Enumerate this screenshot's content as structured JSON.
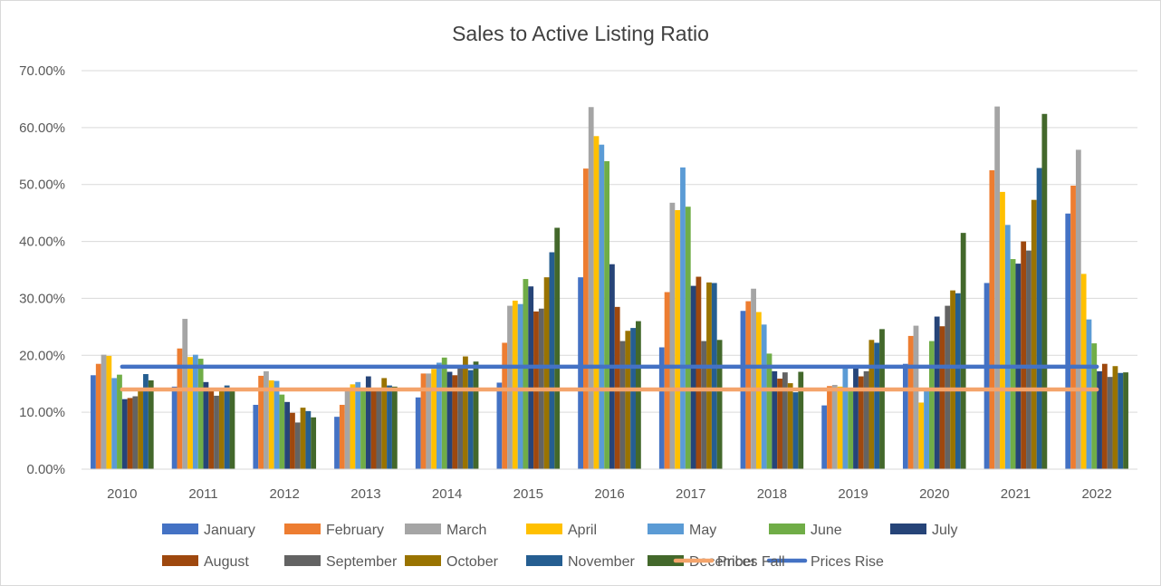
{
  "chart_data": {
    "type": "bar",
    "title": "Sales to Active Listing Ratio",
    "xlabel": "",
    "ylabel": "",
    "ylim": [
      0,
      0.7
    ],
    "y_ticks": [
      "0.00%",
      "10.00%",
      "20.00%",
      "30.00%",
      "40.00%",
      "50.00%",
      "60.00%",
      "70.00%"
    ],
    "grid": true,
    "legend_position": "bottom",
    "categories": [
      "2010",
      "2011",
      "2012",
      "2013",
      "2014",
      "2015",
      "2016",
      "2017",
      "2018",
      "2019",
      "2020",
      "2021",
      "2022"
    ],
    "series": [
      {
        "name": "January",
        "color": "#4472C4",
        "values": [
          0.165,
          0.145,
          0.113,
          0.092,
          0.126,
          0.152,
          0.337,
          0.214,
          0.278,
          0.112,
          0.185,
          0.327,
          0.449
        ]
      },
      {
        "name": "February",
        "color": "#ED7D31",
        "values": [
          0.185,
          0.212,
          0.164,
          0.113,
          0.168,
          0.222,
          0.528,
          0.311,
          0.295,
          0.146,
          0.234,
          0.525,
          0.498
        ]
      },
      {
        "name": "March",
        "color": "#A5A5A5",
        "values": [
          0.201,
          0.264,
          0.172,
          0.142,
          0.168,
          0.287,
          0.636,
          0.468,
          0.317,
          0.148,
          0.252,
          0.637,
          0.561
        ]
      },
      {
        "name": "April",
        "color": "#FFC000",
        "values": [
          0.199,
          0.197,
          0.156,
          0.149,
          0.176,
          0.296,
          0.585,
          0.455,
          0.276,
          0.145,
          0.117,
          0.487,
          0.343
        ]
      },
      {
        "name": "May",
        "color": "#5B9BD5",
        "values": [
          0.16,
          0.201,
          0.155,
          0.153,
          0.187,
          0.29,
          0.57,
          0.53,
          0.254,
          0.182,
          0.137,
          0.429,
          0.263
        ]
      },
      {
        "name": "June",
        "color": "#70AD47",
        "values": [
          0.166,
          0.194,
          0.131,
          0.142,
          0.196,
          0.334,
          0.541,
          0.461,
          0.203,
          0.138,
          0.225,
          0.369,
          0.221
        ]
      },
      {
        "name": "July",
        "color": "#264478",
        "values": [
          0.123,
          0.153,
          0.118,
          0.163,
          0.171,
          0.321,
          0.36,
          0.322,
          0.172,
          0.178,
          0.268,
          0.361,
          0.172
        ]
      },
      {
        "name": "August",
        "color": "#9E480E",
        "values": [
          0.125,
          0.14,
          0.099,
          0.142,
          0.165,
          0.277,
          0.285,
          0.338,
          0.159,
          0.163,
          0.251,
          0.4,
          0.185
        ]
      },
      {
        "name": "September",
        "color": "#636363",
        "values": [
          0.128,
          0.129,
          0.082,
          0.142,
          0.178,
          0.282,
          0.225,
          0.225,
          0.17,
          0.172,
          0.287,
          0.384,
          0.162
        ]
      },
      {
        "name": "October",
        "color": "#997300",
        "values": [
          0.142,
          0.143,
          0.108,
          0.16,
          0.198,
          0.337,
          0.243,
          0.328,
          0.151,
          0.227,
          0.314,
          0.473,
          0.181
        ]
      },
      {
        "name": "November",
        "color": "#255E91",
        "values": [
          0.167,
          0.147,
          0.102,
          0.147,
          0.174,
          0.381,
          0.248,
          0.327,
          0.135,
          0.222,
          0.309,
          0.529,
          0.169
        ]
      },
      {
        "name": "December",
        "color": "#43682B",
        "values": [
          0.156,
          0.141,
          0.091,
          0.145,
          0.189,
          0.424,
          0.26,
          0.227,
          0.171,
          0.246,
          0.415,
          0.624,
          0.17
        ]
      }
    ],
    "reference_lines": [
      {
        "name": "Prices Rise",
        "color": "#4472C4",
        "value": 0.18
      },
      {
        "name": "Prices Fall",
        "color": "#F4A46B",
        "value": 0.14
      }
    ]
  }
}
